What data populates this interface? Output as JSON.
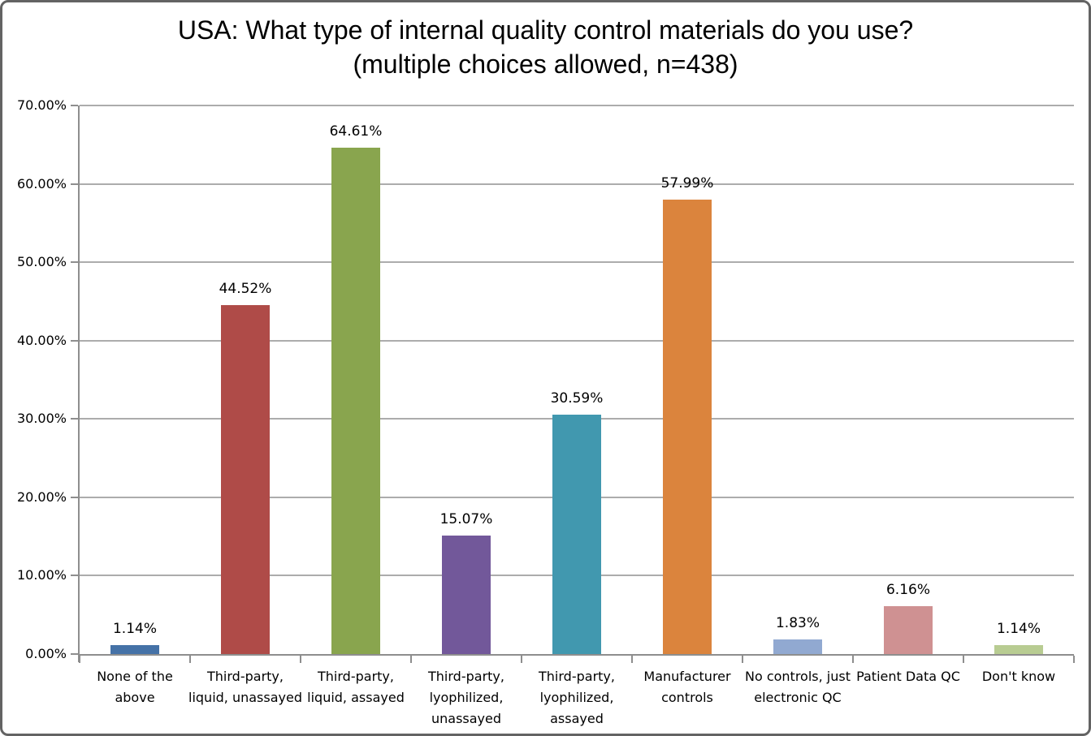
{
  "chart_data": {
    "type": "bar",
    "title": "USA: What type of internal quality control materials do you use? (multiple choices allowed, n=438)",
    "categories": [
      "None of the above",
      "Third-party, liquid, unassayed",
      "Third-party, liquid, assayed",
      "Third-party, lyophilized, unassayed",
      "Third-party, lyophilized, assayed",
      "Manufacturer controls",
      "No controls, just electronic QC",
      "Patient Data QC",
      "Don't know"
    ],
    "values": [
      1.14,
      44.52,
      64.61,
      15.07,
      30.59,
      57.99,
      1.83,
      6.16,
      1.14
    ],
    "data_labels": [
      "1.14%",
      "44.52%",
      "64.61%",
      "15.07%",
      "30.59%",
      "57.99%",
      "1.83%",
      "6.16%",
      "1.14%"
    ],
    "bar_colors": [
      "#4572A7",
      "#AF4B48",
      "#89A54E",
      "#72589A",
      "#4198AF",
      "#DB843D",
      "#91A9D1",
      "#CF9192",
      "#B8CC92"
    ],
    "xlabel": "",
    "ylabel": "",
    "ylim": [
      0,
      70
    ],
    "ytick_values": [
      0,
      10,
      20,
      30,
      40,
      50,
      60,
      70
    ],
    "ytick_labels": [
      "0.00%",
      "10.00%",
      "20.00%",
      "30.00%",
      "40.00%",
      "50.00%",
      "60.00%",
      "70.00%"
    ],
    "grid": true,
    "legend": "none",
    "axis_color": "#8E8E8E",
    "gridline_color": "#ACACAC",
    "text_color": "#000000"
  }
}
